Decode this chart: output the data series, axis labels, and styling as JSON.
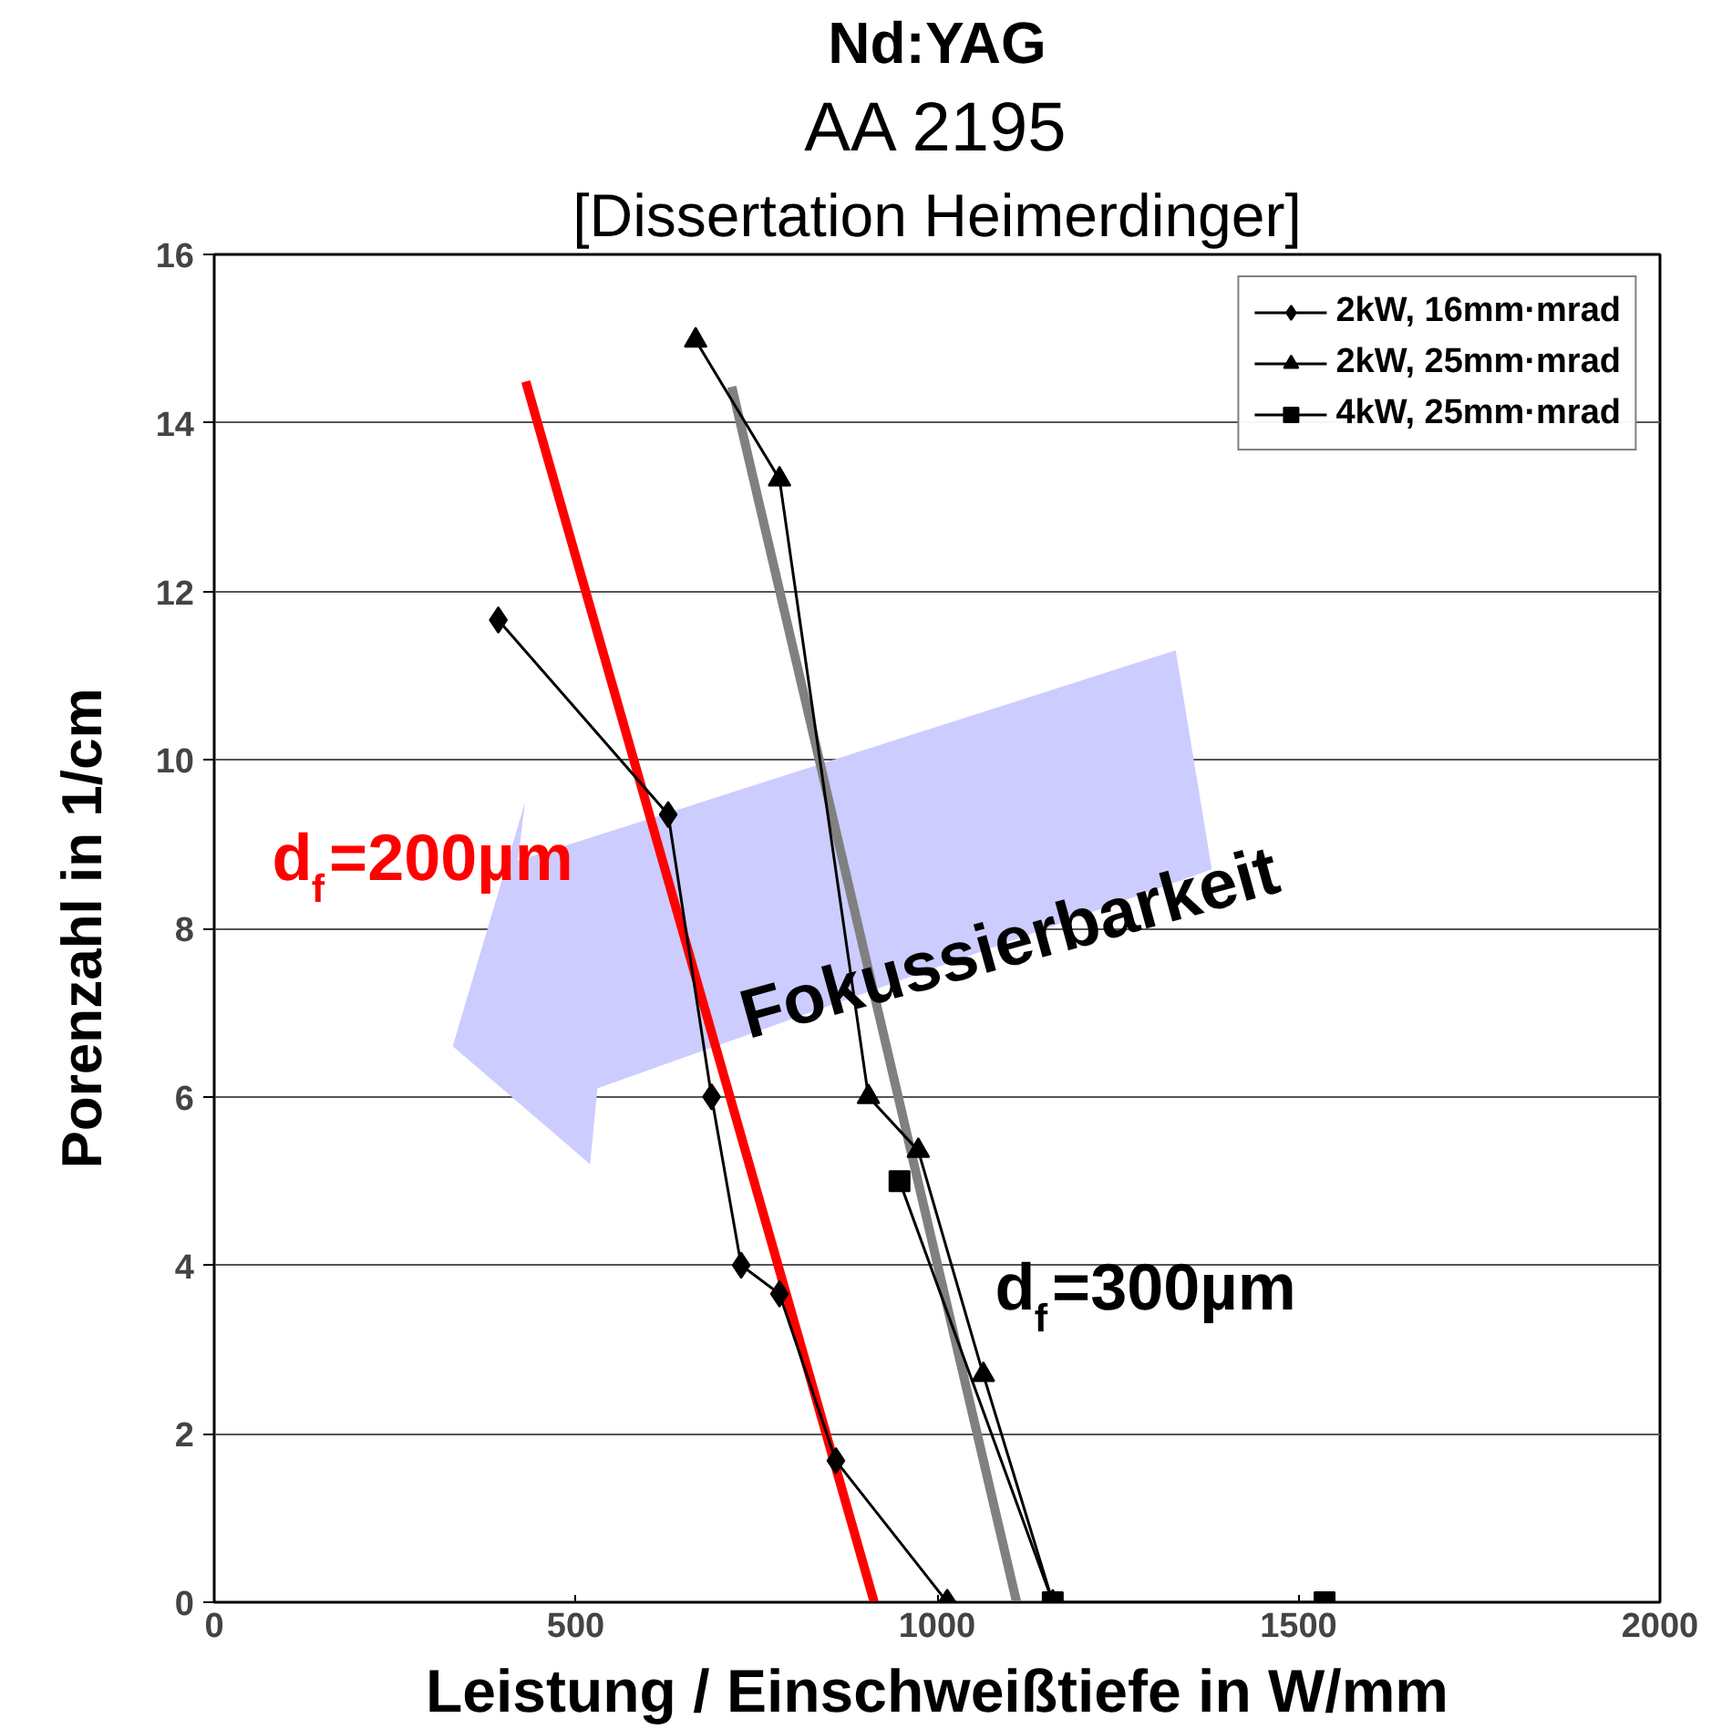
{
  "chart_data": {
    "type": "line",
    "title": "Nd:YAG",
    "subtitle": "AA 2195",
    "xlabel": "Leistung / Einschweißtiefe in W/mm",
    "ylabel": "Porenzahl in 1/cm",
    "xlim": [
      0,
      2000
    ],
    "ylim": [
      0,
      16
    ],
    "xticks": [
      0,
      500,
      1000,
      1500,
      2000
    ],
    "yticks": [
      0,
      2,
      4,
      6,
      8,
      10,
      12,
      14,
      16
    ],
    "grid": "y",
    "legend": "top right",
    "series": [
      {
        "name": "2kW, 16mm·mrad",
        "color": "#000000",
        "marker": "diamond",
        "x": [
          393,
          628,
          688,
          729,
          782,
          860,
          1014
        ],
        "values": [
          11.66,
          9.35,
          6.0,
          4.0,
          3.66,
          1.68,
          0
        ]
      },
      {
        "name": "2kW, 25mm·mrad",
        "color": "#000000",
        "marker": "triangle",
        "x": [
          666,
          782,
          905,
          974,
          1064,
          1160
        ],
        "values": [
          14.98,
          13.33,
          6.0,
          5.36,
          2.7,
          0
        ]
      },
      {
        "name": "4kW, 25mm·mrad",
        "color": "#000000",
        "marker": "square",
        "x": [
          948,
          1160,
          1536
        ],
        "values": [
          5.0,
          0,
          0
        ]
      },
      {
        "color": "#ff0000",
        "marker": "none",
        "x": [
          431,
          913
        ],
        "values": [
          14.49,
          0
        ]
      },
      {
        "color": "#808080",
        "marker": "none",
        "x": [
          716,
          1110
        ],
        "values": [
          14.43,
          0
        ]
      }
    ],
    "annotations": [
      "[Dissertation Heimerdinger]",
      "d$_{f}$=200µm",
      "d$_{f}$=300µm",
      "Fokussierbarkeit"
    ]
  }
}
